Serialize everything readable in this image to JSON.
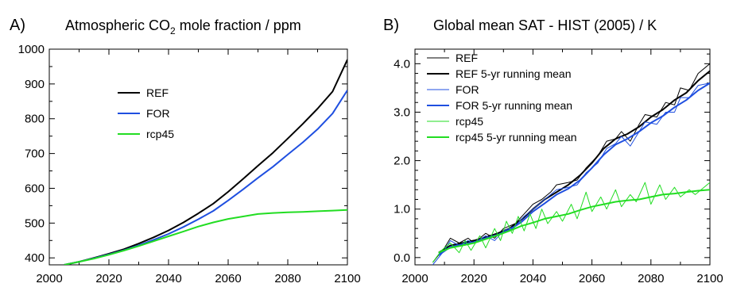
{
  "chart_data": [
    {
      "panel": "A)",
      "type": "line",
      "title_main": "Atmospheric CO",
      "title_sub": "2",
      "title_rest": " mole fraction / ppm",
      "xlim": [
        2000,
        2100
      ],
      "ylim": [
        380,
        1000
      ],
      "xticks": [
        2000,
        2020,
        2040,
        2060,
        2080,
        2100
      ],
      "yticks": [
        400,
        500,
        600,
        700,
        800,
        900,
        1000
      ],
      "legend_position": "upper-left inside",
      "grid": false,
      "series": [
        {
          "name": "REF",
          "color": "#000000",
          "x": [
            2005,
            2010,
            2015,
            2020,
            2025,
            2030,
            2035,
            2040,
            2045,
            2050,
            2055,
            2060,
            2065,
            2070,
            2075,
            2080,
            2085,
            2090,
            2095,
            2100
          ],
          "y": [
            380,
            389,
            400,
            412,
            425,
            441,
            459,
            479,
            502,
            528,
            556,
            590,
            627,
            665,
            702,
            743,
            785,
            829,
            878,
            970
          ]
        },
        {
          "name": "FOR",
          "color": "#1f4fe0",
          "x": [
            2005,
            2010,
            2015,
            2020,
            2025,
            2030,
            2035,
            2040,
            2045,
            2050,
            2055,
            2060,
            2065,
            2070,
            2075,
            2080,
            2085,
            2090,
            2095,
            2100
          ],
          "y": [
            380,
            389,
            399,
            410,
            422,
            436,
            452,
            469,
            489,
            511,
            535,
            565,
            597,
            630,
            662,
            697,
            732,
            770,
            815,
            882
          ]
        },
        {
          "name": "rcp45",
          "color": "#22dd22",
          "x": [
            2005,
            2010,
            2015,
            2020,
            2025,
            2030,
            2035,
            2040,
            2045,
            2050,
            2055,
            2060,
            2065,
            2070,
            2075,
            2080,
            2085,
            2090,
            2095,
            2100
          ],
          "y": [
            380,
            389,
            398,
            409,
            421,
            434,
            448,
            462,
            476,
            490,
            502,
            512,
            519,
            526,
            529,
            531,
            532,
            534,
            536,
            538
          ]
        }
      ]
    },
    {
      "panel": "B)",
      "type": "line",
      "title": "Global mean SAT - HIST (2005) / K",
      "xlim": [
        2000,
        2100
      ],
      "ylim": [
        -0.15,
        4.3
      ],
      "xticks": [
        2000,
        2020,
        2040,
        2060,
        2080,
        2100
      ],
      "yticks": [
        0.0,
        1.0,
        2.0,
        3.0,
        4.0
      ],
      "ytick_labels": [
        "0.0",
        "1.0",
        "2.0",
        "3.0",
        "4.0"
      ],
      "legend_position": "upper-left inside",
      "grid": false,
      "series": [
        {
          "name": "REF",
          "color": "#000000",
          "style": "thin",
          "x": [
            2006,
            2010,
            2012,
            2015,
            2018,
            2020,
            2024,
            2027,
            2030,
            2034,
            2037,
            2040,
            2043,
            2046,
            2048,
            2052,
            2055,
            2058,
            2062,
            2065,
            2068,
            2070,
            2073,
            2076,
            2078,
            2082,
            2085,
            2088,
            2090,
            2093,
            2096,
            2100
          ],
          "y": [
            -0.1,
            0.2,
            0.4,
            0.3,
            0.4,
            0.3,
            0.5,
            0.4,
            0.6,
            0.7,
            0.9,
            1.1,
            1.2,
            1.35,
            1.5,
            1.55,
            1.6,
            1.85,
            2.1,
            2.4,
            2.45,
            2.6,
            2.4,
            2.75,
            2.95,
            2.9,
            3.2,
            3.15,
            3.5,
            3.45,
            3.8,
            4.0
          ]
        },
        {
          "name": "REF 5-yr running mean",
          "color": "#000000",
          "style": "thick",
          "x": [
            2008,
            2012,
            2016,
            2020,
            2024,
            2028,
            2032,
            2036,
            2040,
            2044,
            2048,
            2052,
            2056,
            2060,
            2064,
            2068,
            2072,
            2076,
            2080,
            2084,
            2088,
            2092,
            2096,
            2100
          ],
          "y": [
            0.1,
            0.25,
            0.3,
            0.35,
            0.42,
            0.5,
            0.6,
            0.78,
            1.0,
            1.2,
            1.35,
            1.5,
            1.7,
            1.95,
            2.25,
            2.45,
            2.55,
            2.7,
            2.9,
            3.05,
            3.25,
            3.4,
            3.65,
            3.85
          ]
        },
        {
          "name": "FOR",
          "color": "#1f4fe0",
          "style": "thin",
          "x": [
            2006,
            2010,
            2012,
            2015,
            2018,
            2020,
            2024,
            2027,
            2030,
            2034,
            2037,
            2040,
            2043,
            2046,
            2048,
            2052,
            2055,
            2058,
            2062,
            2065,
            2068,
            2070,
            2073,
            2076,
            2078,
            2082,
            2085,
            2088,
            2090,
            2093,
            2096,
            2100
          ],
          "y": [
            -0.15,
            0.15,
            0.35,
            0.25,
            0.35,
            0.3,
            0.45,
            0.35,
            0.55,
            0.65,
            0.85,
            1.0,
            1.15,
            1.3,
            1.4,
            1.45,
            1.5,
            1.75,
            1.95,
            2.25,
            2.35,
            2.5,
            2.3,
            2.6,
            2.8,
            2.75,
            3.0,
            3.0,
            3.3,
            3.3,
            3.55,
            3.6
          ]
        },
        {
          "name": "FOR 5-yr running mean",
          "color": "#1f4fe0",
          "style": "thick",
          "x": [
            2008,
            2012,
            2016,
            2020,
            2024,
            2028,
            2032,
            2036,
            2040,
            2044,
            2048,
            2052,
            2056,
            2060,
            2064,
            2068,
            2072,
            2076,
            2080,
            2084,
            2088,
            2092,
            2096,
            2100
          ],
          "y": [
            0.05,
            0.22,
            0.27,
            0.32,
            0.4,
            0.47,
            0.57,
            0.73,
            0.95,
            1.12,
            1.3,
            1.42,
            1.6,
            1.85,
            2.12,
            2.33,
            2.45,
            2.6,
            2.78,
            2.92,
            3.1,
            3.25,
            3.45,
            3.6
          ]
        },
        {
          "name": "rcp45",
          "color": "#22dd22",
          "style": "thin",
          "x": [
            2006,
            2009,
            2012,
            2015,
            2017,
            2019,
            2022,
            2024,
            2027,
            2029,
            2031,
            2033,
            2035,
            2037,
            2039,
            2041,
            2043,
            2045,
            2048,
            2050,
            2053,
            2055,
            2058,
            2060,
            2063,
            2065,
            2068,
            2070,
            2073,
            2075,
            2078,
            2080,
            2083,
            2085,
            2088,
            2090,
            2093,
            2095,
            2098,
            2100
          ],
          "y": [
            -0.1,
            0.15,
            0.3,
            0.1,
            0.35,
            0.15,
            0.45,
            0.2,
            0.6,
            0.35,
            0.75,
            0.5,
            0.85,
            0.55,
            0.9,
            0.6,
            1.0,
            0.7,
            0.95,
            0.75,
            1.1,
            0.8,
            1.35,
            0.95,
            1.25,
            1.0,
            1.4,
            1.05,
            1.3,
            1.15,
            1.55,
            1.1,
            1.5,
            1.2,
            1.45,
            1.25,
            1.4,
            1.3,
            1.45,
            1.55
          ]
        },
        {
          "name": "rcp45 5-yr running mean",
          "color": "#22dd22",
          "style": "thick",
          "x": [
            2008,
            2012,
            2016,
            2020,
            2024,
            2028,
            2032,
            2036,
            2040,
            2044,
            2048,
            2052,
            2056,
            2060,
            2064,
            2068,
            2072,
            2076,
            2080,
            2084,
            2088,
            2092,
            2096,
            2100
          ],
          "y": [
            0.1,
            0.2,
            0.25,
            0.3,
            0.38,
            0.46,
            0.55,
            0.65,
            0.72,
            0.8,
            0.85,
            0.9,
            0.98,
            1.05,
            1.1,
            1.15,
            1.18,
            1.2,
            1.25,
            1.3,
            1.32,
            1.35,
            1.38,
            1.4
          ]
        }
      ]
    }
  ]
}
